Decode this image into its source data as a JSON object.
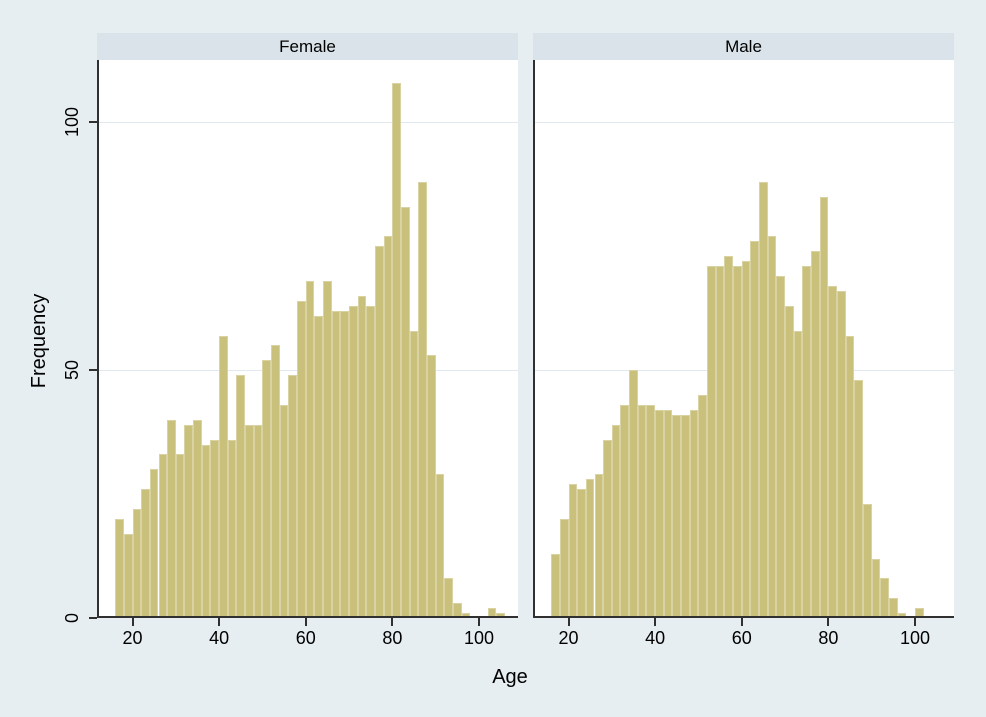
{
  "figure": {
    "background_color": "#e7eef2",
    "panel_background": "#ffffff",
    "header_strip_color": "#dae3ea",
    "gridline_color": "#e0e9f0",
    "axis_color": "#303030",
    "bar_fill_color": "#c9c17b",
    "bar_outline_color": "#d9d3a3",
    "text_color": "#000000"
  },
  "y_axis": {
    "label": "Frequency",
    "ticks": [
      0,
      50,
      100
    ]
  },
  "x_axis": {
    "label": "Age",
    "ticks": [
      20,
      40,
      60,
      80,
      100
    ]
  },
  "chart_data": {
    "type": "bar",
    "subtype": "faceted-histogram",
    "bin_start_age": 16,
    "bin_width_years": 2,
    "x_domain": [
      11.8,
      109.0
    ],
    "y_max": 112.6,
    "grid": true,
    "facets": [
      {
        "label": "Female",
        "values": [
          20,
          17,
          22,
          26,
          30,
          33,
          40,
          33,
          39,
          40,
          35,
          36,
          57,
          36,
          49,
          39,
          39,
          52,
          55,
          43,
          49,
          64,
          68,
          61,
          68,
          62,
          62,
          63,
          65,
          63,
          75,
          77,
          108,
          83,
          58,
          88,
          53,
          29,
          8,
          3,
          1,
          0,
          0,
          2,
          1
        ]
      },
      {
        "label": "Male",
        "values": [
          13,
          20,
          27,
          26,
          28,
          29,
          36,
          39,
          43,
          50,
          43,
          43,
          42,
          42,
          41,
          41,
          42,
          45,
          71,
          71,
          73,
          71,
          72,
          76,
          88,
          77,
          69,
          63,
          58,
          71,
          74,
          85,
          67,
          66,
          57,
          48,
          23,
          12,
          8,
          4,
          1,
          0,
          2
        ]
      }
    ]
  }
}
